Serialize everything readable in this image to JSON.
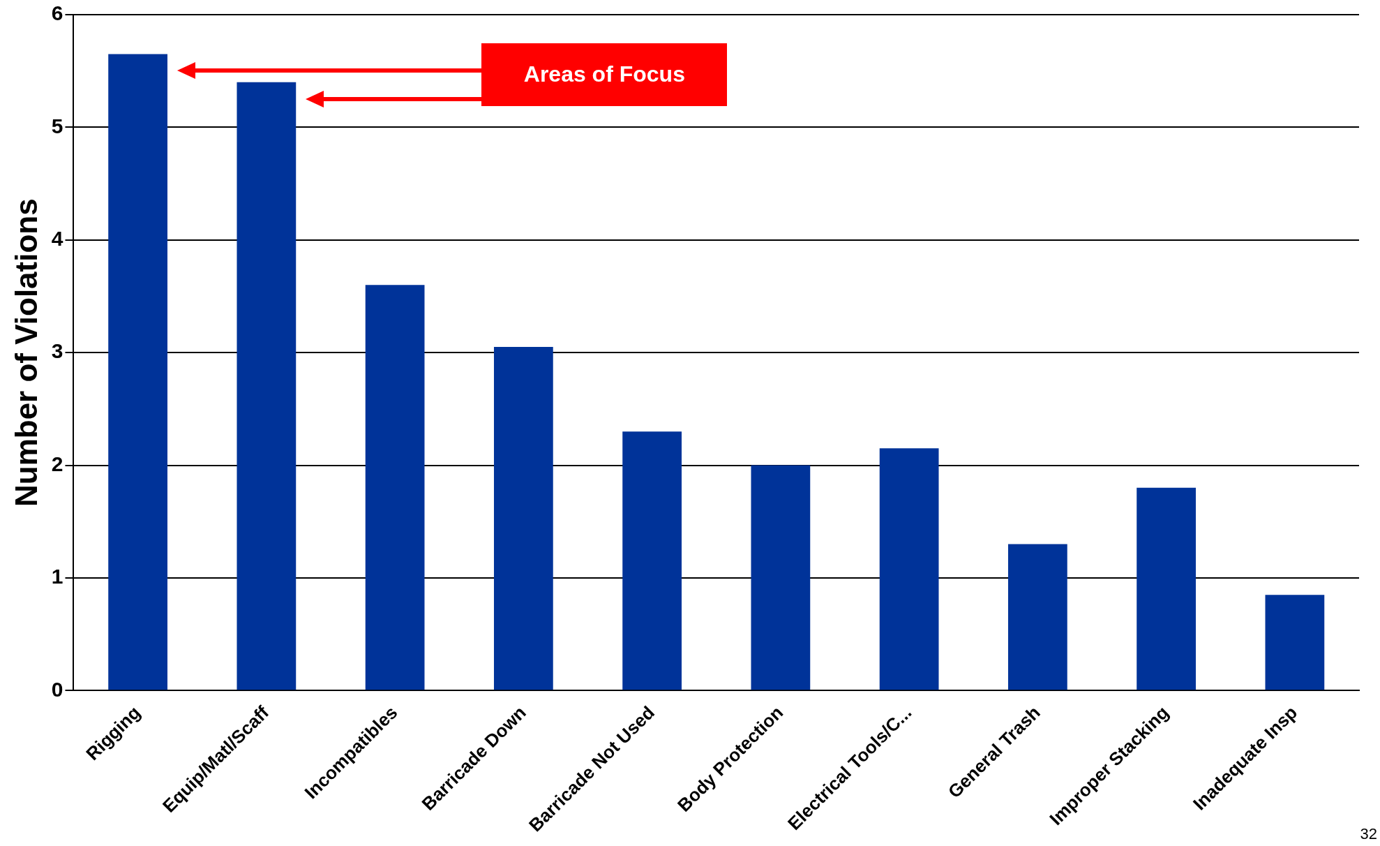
{
  "chart_data": {
    "type": "bar",
    "ylabel": "Number of Violations",
    "categories": [
      "Rigging",
      "Equip/Matl/Scaff",
      "Incompatibles",
      "Barricade Down",
      "Barricade Not Used",
      "Body Protection",
      "Electrical Tools/C...",
      "General Trash",
      "Improper Stacking",
      "Inadequate Insp"
    ],
    "values": [
      5.65,
      5.4,
      3.6,
      3.05,
      2.3,
      2.0,
      2.15,
      1.3,
      1.8,
      0.85
    ],
    "color": "#003399",
    "ylim": [
      0,
      6
    ],
    "yticks": [
      0,
      1,
      2,
      3,
      4,
      5,
      6
    ],
    "grid": "y",
    "annotations": [
      "Areas of Focus",
      "32"
    ]
  }
}
